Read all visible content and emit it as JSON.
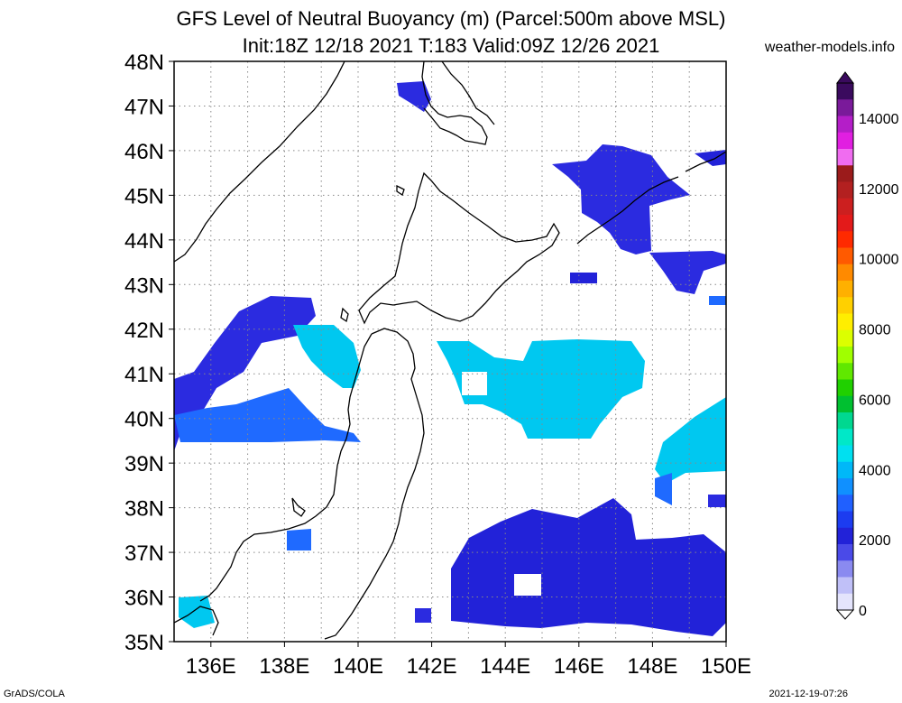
{
  "title": {
    "line1": "GFS Level of Neutral Buoyancy (m) (Parcel:500m above MSL)",
    "line2": "Init:18Z 12/18 2021 T:183 Valid:09Z 12/26 2021"
  },
  "site": "weather-models.info",
  "footer": {
    "left": "GrADS/COLA",
    "right": "2021-12-19-07:26"
  },
  "map": {
    "lat_labels": [
      "48N",
      "47N",
      "46N",
      "45N",
      "44N",
      "43N",
      "42N",
      "41N",
      "40N",
      "39N",
      "38N",
      "37N",
      "36N",
      "35N"
    ],
    "lon_labels": [
      "136E",
      "138E",
      "140E",
      "142E",
      "144E",
      "146E",
      "148E",
      "150E"
    ],
    "lat_range": [
      35,
      48
    ],
    "lon_range": [
      135,
      150
    ]
  },
  "colorbar": {
    "labels": [
      "14000",
      "12000",
      "10000",
      "8000",
      "6000",
      "4000",
      "2000",
      "0"
    ],
    "colors": [
      "#3a0a5e",
      "#7a1a9a",
      "#b41ec8",
      "#e11fe1",
      "#f06cf0",
      "#9b1b1b",
      "#b32020",
      "#cc1f1f",
      "#e31a1a",
      "#ff2a00",
      "#ff5a00",
      "#ff8a00",
      "#ffb000",
      "#ffd000",
      "#ffee00",
      "#dcff00",
      "#a0ff00",
      "#60e800",
      "#20d000",
      "#00c030",
      "#00d890",
      "#00e8c8",
      "#00e0f0",
      "#00b8f8",
      "#1090ff",
      "#2060ff",
      "#1c3cf0",
      "#2222d8",
      "#4a4ae8",
      "#8a8af0",
      "#c0c0f8",
      "#e4e4fc"
    ],
    "range": [
      0,
      15000
    ]
  }
}
